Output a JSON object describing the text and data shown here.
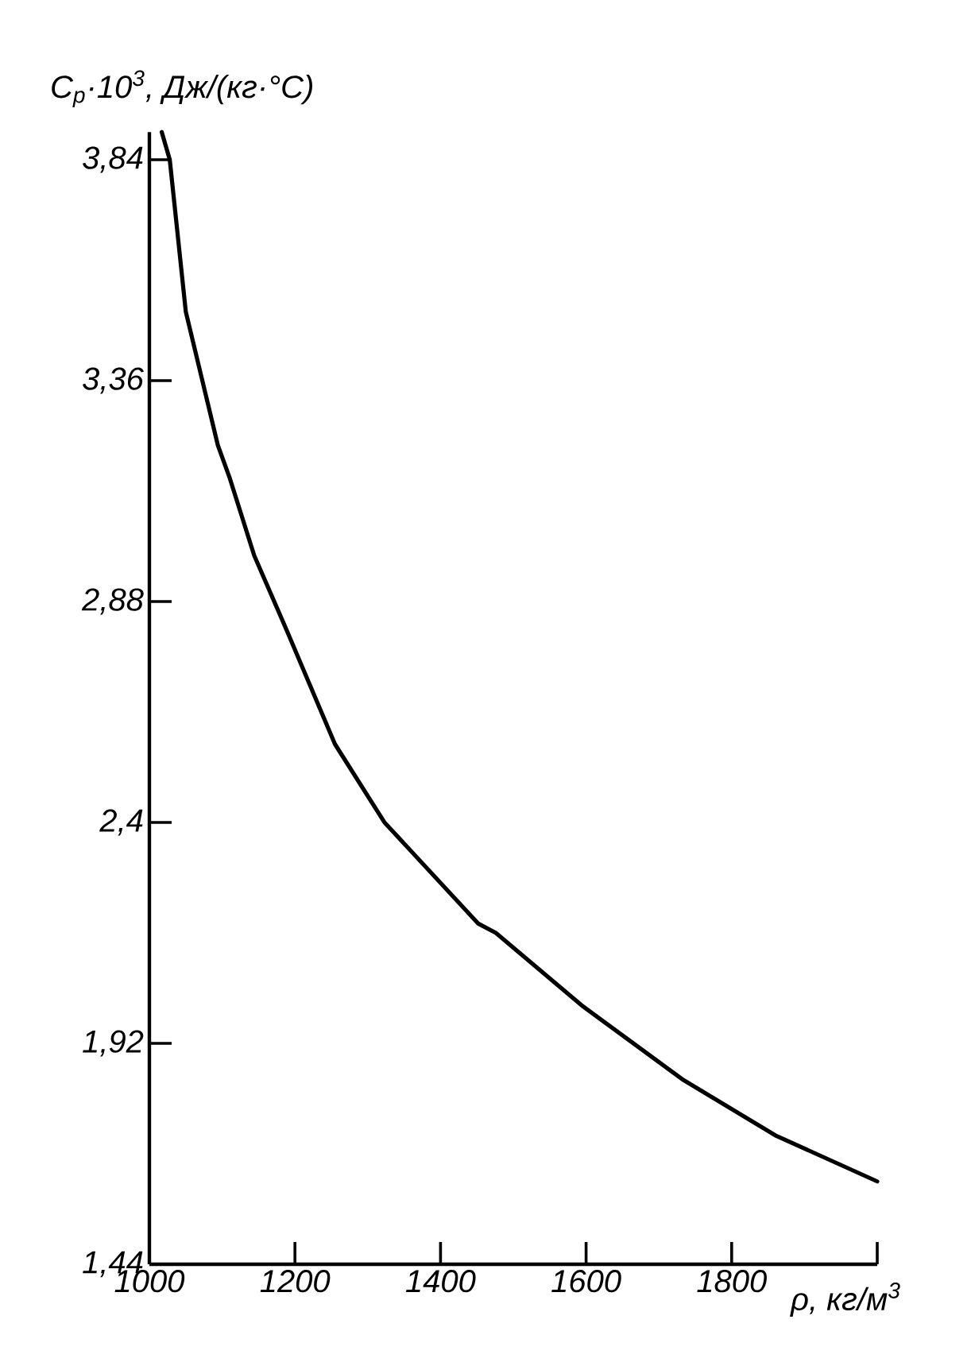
{
  "chart_data": {
    "type": "line",
    "xlabel": "ρ, кг/м$^{3}$",
    "ylabel": "C$_{р}$·10$^{3}$, Дж/(кг·°С)",
    "x": [
      1017,
      1028,
      1050,
      1094,
      1110,
      1144,
      1188,
      1255,
      1323,
      1452,
      1476,
      1596,
      1734,
      1860,
      2000
    ],
    "series": [
      {
        "color": "#000000",
        "values": [
          3.9,
          3.84,
          3.51,
          3.22,
          3.15,
          2.98,
          2.82,
          2.57,
          2.4,
          2.18,
          2.16,
          2.0,
          1.84,
          1.72,
          1.62
        ]
      }
    ],
    "xlim": [
      1000,
      2000
    ],
    "ylim": [
      1.44,
      3.9
    ],
    "xticks": [
      1000,
      1200,
      1400,
      1600,
      1800,
      {
        "value": 2000,
        "label": null
      }
    ],
    "yticks": [
      {
        "value": 1.44,
        "label": "1,44"
      },
      {
        "value": 1.92,
        "label": "1,92"
      },
      {
        "value": 2.4,
        "label": "2,4"
      },
      {
        "value": 2.88,
        "label": "2,88"
      },
      {
        "value": 3.36,
        "label": "3,36"
      },
      {
        "value": 3.84,
        "label": "3,84"
      }
    ]
  }
}
